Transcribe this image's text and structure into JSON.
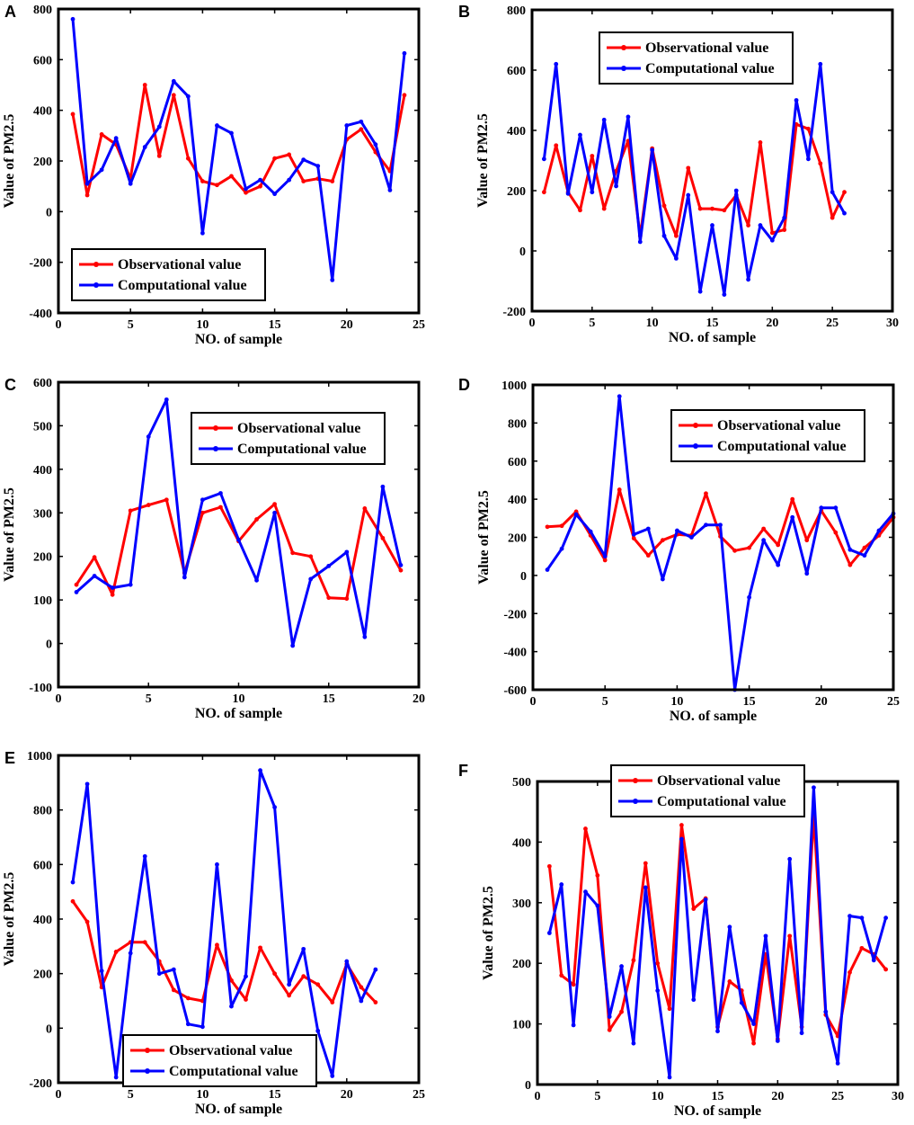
{
  "colors": {
    "observed": "#ff0000",
    "computed": "#0000ff",
    "frame": "#000000"
  },
  "chart_data": [
    {
      "panel": "A",
      "type": "line",
      "xlabel": "NO. of sample",
      "ylabel": "Value of PM2.5",
      "xlim": [
        0,
        25
      ],
      "ylim": [
        -400,
        800
      ],
      "xticks": [
        0,
        5,
        10,
        15,
        20,
        25
      ],
      "yticks": [
        -400,
        -200,
        0,
        200,
        400,
        600,
        800
      ],
      "legend": "bottom-left",
      "series": [
        {
          "name": "Observational value",
          "values": [
            385,
            65,
            305,
            265,
            130,
            500,
            220,
            460,
            210,
            120,
            105,
            140,
            75,
            100,
            210,
            225,
            120,
            130,
            120,
            285,
            325,
            235,
            160,
            460
          ]
        },
        {
          "name": "Computational value",
          "values": [
            760,
            110,
            165,
            290,
            110,
            255,
            335,
            515,
            455,
            -85,
            340,
            310,
            90,
            125,
            70,
            125,
            205,
            180,
            -270,
            340,
            355,
            265,
            85,
            625
          ]
        }
      ]
    },
    {
      "panel": "B",
      "type": "line",
      "xlabel": "NO. of sample",
      "ylabel": "Value of PM2.5",
      "xlim": [
        0,
        30
      ],
      "ylim": [
        -200,
        800
      ],
      "xticks": [
        0,
        5,
        10,
        15,
        20,
        25,
        30
      ],
      "yticks": [
        -200,
        0,
        200,
        400,
        600,
        800
      ],
      "legend": "top-center",
      "series": [
        {
          "name": "Observational value",
          "values": [
            195,
            350,
            195,
            135,
            315,
            140,
            265,
            365,
            50,
            340,
            150,
            50,
            275,
            140,
            140,
            135,
            185,
            85,
            360,
            60,
            70,
            420,
            405,
            290,
            110,
            195
          ]
        },
        {
          "name": "Computational value",
          "values": [
            305,
            620,
            190,
            385,
            195,
            435,
            215,
            445,
            30,
            335,
            50,
            -25,
            185,
            -135,
            85,
            -145,
            200,
            -95,
            85,
            35,
            110,
            500,
            305,
            620,
            195,
            125
          ]
        }
      ]
    },
    {
      "panel": "C",
      "type": "line",
      "xlabel": "NO. of sample",
      "ylabel": "Value of PM2.5",
      "xlim": [
        0,
        20
      ],
      "ylim": [
        -100,
        600
      ],
      "xticks": [
        0,
        5,
        10,
        15,
        20
      ],
      "yticks": [
        -100,
        0,
        100,
        200,
        300,
        400,
        500,
        600
      ],
      "legend": "top-right",
      "series": [
        {
          "name": "Observational value",
          "values": [
            135,
            198,
            112,
            305,
            318,
            330,
            162,
            300,
            313,
            235,
            285,
            320,
            208,
            200,
            105,
            103,
            310,
            242,
            168
          ]
        },
        {
          "name": "Computational value",
          "values": [
            118,
            155,
            128,
            135,
            475,
            560,
            152,
            330,
            345,
            238,
            145,
            300,
            -5,
            148,
            178,
            210,
            15,
            360,
            180
          ]
        }
      ]
    },
    {
      "panel": "D",
      "type": "line",
      "xlabel": "NO. of sample",
      "ylabel": "Value of PM2.5",
      "xlim": [
        0,
        25
      ],
      "ylim": [
        -600,
        1000
      ],
      "xticks": [
        0,
        5,
        10,
        15,
        20,
        25
      ],
      "yticks": [
        -600,
        -400,
        -200,
        0,
        200,
        400,
        600,
        800,
        1000
      ],
      "legend": "top-right",
      "series": [
        {
          "name": "Observational value",
          "values": [
            255,
            260,
            335,
            210,
            80,
            450,
            195,
            105,
            185,
            215,
            210,
            430,
            205,
            130,
            145,
            245,
            160,
            400,
            185,
            340,
            225,
            55,
            145,
            210,
            305
          ]
        },
        {
          "name": "Computational value",
          "values": [
            30,
            140,
            320,
            230,
            100,
            940,
            215,
            245,
            -20,
            235,
            200,
            265,
            265,
            -600,
            -115,
            185,
            55,
            305,
            10,
            355,
            355,
            135,
            105,
            235,
            325
          ]
        }
      ]
    },
    {
      "panel": "E",
      "type": "line",
      "xlabel": "NO. of sample",
      "ylabel": "Value of PM2.5",
      "xlim": [
        0,
        25
      ],
      "ylim": [
        -200,
        1000
      ],
      "xticks": [
        0,
        5,
        10,
        15,
        20,
        25
      ],
      "yticks": [
        -200,
        0,
        200,
        400,
        600,
        800,
        1000
      ],
      "legend": "bottom-center",
      "series": [
        {
          "name": "Observational value",
          "values": [
            465,
            390,
            150,
            280,
            315,
            315,
            245,
            140,
            110,
            100,
            305,
            175,
            105,
            295,
            200,
            120,
            190,
            160,
            95,
            235,
            150,
            95
          ]
        },
        {
          "name": "Computational value",
          "values": [
            535,
            895,
            210,
            -180,
            275,
            630,
            200,
            215,
            15,
            5,
            600,
            80,
            190,
            945,
            810,
            160,
            290,
            -10,
            -175,
            245,
            100,
            215
          ]
        }
      ]
    },
    {
      "panel": "F",
      "type": "line",
      "xlabel": "NO. of sample",
      "ylabel": "Value of PM2.5",
      "xlim": [
        0,
        30
      ],
      "ylim": [
        0,
        500
      ],
      "xticks": [
        0,
        5,
        10,
        15,
        20,
        25,
        30
      ],
      "yticks": [
        0,
        100,
        200,
        300,
        400,
        500
      ],
      "legend": "top-left",
      "series": [
        {
          "name": "Observational value",
          "values": [
            360,
            180,
            165,
            422,
            345,
            90,
            120,
            205,
            365,
            200,
            125,
            428,
            290,
            307,
            95,
            170,
            155,
            68,
            215,
            75,
            245,
            95,
            445,
            115,
            80,
            185,
            225,
            215,
            190
          ]
        },
        {
          "name": "Computational value",
          "values": [
            250,
            330,
            98,
            318,
            295,
            112,
            195,
            68,
            325,
            155,
            12,
            405,
            140,
            305,
            88,
            260,
            135,
            100,
            245,
            72,
            372,
            85,
            490,
            120,
            35,
            278,
            275,
            205,
            275
          ]
        }
      ]
    }
  ]
}
